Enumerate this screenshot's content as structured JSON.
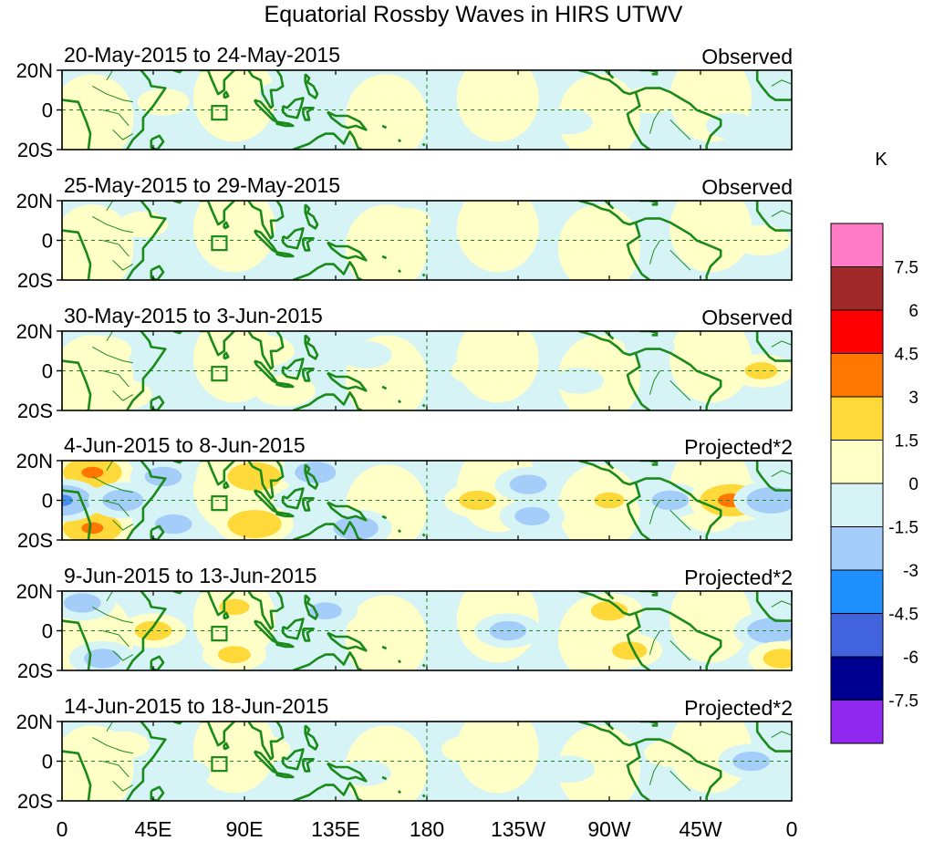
{
  "title": "Equatorial Rossby Waves in HIRS UTWV",
  "unit": "K",
  "lat_labels": [
    "20N",
    "0",
    "20S"
  ],
  "lon_labels": [
    "0",
    "45E",
    "90E",
    "135E",
    "180",
    "135W",
    "90W",
    "45W",
    "0"
  ],
  "panels": [
    {
      "date_range": "20-May-2015 to 24-May-2015",
      "kind": "Observed"
    },
    {
      "date_range": "25-May-2015 to 29-May-2015",
      "kind": "Observed"
    },
    {
      "date_range": "30-May-2015 to 3-Jun-2015",
      "kind": "Observed"
    },
    {
      "date_range": "4-Jun-2015 to 8-Jun-2015",
      "kind": "Projected*2"
    },
    {
      "date_range": "9-Jun-2015 to 13-Jun-2015",
      "kind": "Projected*2"
    },
    {
      "date_range": "14-Jun-2015 to 18-Jun-2015",
      "kind": "Projected*2"
    }
  ],
  "colorbar": {
    "labels": [
      "7.5",
      "6",
      "4.5",
      "3",
      "1.5",
      "0",
      "-1.5",
      "-3",
      "-4.5",
      "-6",
      "-7.5"
    ],
    "colors": [
      "#ff7bc6",
      "#a02828",
      "#ff0000",
      "#ff7700",
      "#ffd93a",
      "#ffffc8",
      "#d6f4f6",
      "#a5cdfa",
      "#2090ff",
      "#4164de",
      "#000090",
      "#9128f0"
    ]
  },
  "map_colors": {
    "coast": "#1a8a1a",
    "pos1": "#ffffc8",
    "pos2": "#ffd93a",
    "pos3": "#ff7700",
    "neg1": "#d6f4f6",
    "neg2": "#a5cdfa",
    "neg3": "#4a8ef0"
  },
  "panel_anomalies": [
    [
      {
        "lon": 50,
        "lat": 4,
        "amp": 0.8
      },
      {
        "lon": 110,
        "lat": 8,
        "amp": -0.8
      },
      {
        "lon": 160,
        "lat": -5,
        "amp": 0.7
      },
      {
        "lon": 220,
        "lat": 3,
        "amp": 0.9
      },
      {
        "lon": 250,
        "lat": -6,
        "amp": -0.6
      },
      {
        "lon": 290,
        "lat": 5,
        "amp": 0.8
      },
      {
        "lon": 330,
        "lat": -8,
        "amp": -0.7
      }
    ],
    [
      {
        "lon": 40,
        "lat": 8,
        "amp": 0.7
      },
      {
        "lon": 115,
        "lat": 0,
        "amp": -0.9
      },
      {
        "lon": 170,
        "lat": 10,
        "amp": 0.6
      },
      {
        "lon": 215,
        "lat": -5,
        "amp": 0.9
      },
      {
        "lon": 265,
        "lat": 6,
        "amp": 0.7
      },
      {
        "lon": 345,
        "lat": 0,
        "amp": 1.2
      }
    ],
    [
      {
        "lon": 20,
        "lat": 10,
        "amp": 1.2
      },
      {
        "lon": 30,
        "lat": -12,
        "amp": 1.2
      },
      {
        "lon": 100,
        "lat": 10,
        "amp": 1.3
      },
      {
        "lon": 110,
        "lat": -10,
        "amp": 1.4
      },
      {
        "lon": 150,
        "lat": 8,
        "amp": -0.8
      },
      {
        "lon": 205,
        "lat": 0,
        "amp": 0.9
      },
      {
        "lon": 255,
        "lat": -5,
        "amp": -0.7
      },
      {
        "lon": 290,
        "lat": 12,
        "amp": -0.7
      },
      {
        "lon": 345,
        "lat": 0,
        "amp": 1.6
      }
    ],
    [
      {
        "lon": 15,
        "lat": 14,
        "amp": 3.0
      },
      {
        "lon": 15,
        "lat": -14,
        "amp": 3.0
      },
      {
        "lon": 0,
        "lat": 0,
        "amp": -3.0
      },
      {
        "lon": 30,
        "lat": 0,
        "amp": -2.0
      },
      {
        "lon": 50,
        "lat": 12,
        "amp": -1.8
      },
      {
        "lon": 55,
        "lat": -12,
        "amp": -1.8
      },
      {
        "lon": 95,
        "lat": 12,
        "amp": 2.7
      },
      {
        "lon": 95,
        "lat": -12,
        "amp": 2.7
      },
      {
        "lon": 125,
        "lat": 14,
        "amp": -2.0
      },
      {
        "lon": 145,
        "lat": -14,
        "amp": -2.2
      },
      {
        "lon": 205,
        "lat": 0,
        "amp": 1.8
      },
      {
        "lon": 230,
        "lat": 8,
        "amp": -1.8
      },
      {
        "lon": 232,
        "lat": -8,
        "amp": -1.7
      },
      {
        "lon": 270,
        "lat": 0,
        "amp": 1.5
      },
      {
        "lon": 300,
        "lat": 0,
        "amp": -1.8
      },
      {
        "lon": 330,
        "lat": 0,
        "amp": 3.2
      },
      {
        "lon": 350,
        "lat": 0,
        "amp": -2.5
      }
    ],
    [
      {
        "lon": 10,
        "lat": 14,
        "amp": -1.8
      },
      {
        "lon": 20,
        "lat": -14,
        "amp": -1.8
      },
      {
        "lon": 45,
        "lat": 0,
        "amp": 1.8
      },
      {
        "lon": 85,
        "lat": 12,
        "amp": 1.5
      },
      {
        "lon": 85,
        "lat": -12,
        "amp": 1.6
      },
      {
        "lon": 130,
        "lat": 10,
        "amp": -1.6
      },
      {
        "lon": 160,
        "lat": -5,
        "amp": 1.4
      },
      {
        "lon": 220,
        "lat": 0,
        "amp": -1.8
      },
      {
        "lon": 270,
        "lat": 10,
        "amp": 1.8
      },
      {
        "lon": 280,
        "lat": -10,
        "amp": 1.7
      },
      {
        "lon": 350,
        "lat": 0,
        "amp": -2.4
      },
      {
        "lon": 355,
        "lat": -14,
        "amp": 1.8
      }
    ],
    [
      {
        "lon": 30,
        "lat": 8,
        "amp": 0.9
      },
      {
        "lon": 60,
        "lat": -6,
        "amp": -0.9
      },
      {
        "lon": 100,
        "lat": 6,
        "amp": 0.8
      },
      {
        "lon": 150,
        "lat": -6,
        "amp": -0.7
      },
      {
        "lon": 200,
        "lat": 6,
        "amp": 0.8
      },
      {
        "lon": 250,
        "lat": -4,
        "amp": -0.8
      },
      {
        "lon": 300,
        "lat": 4,
        "amp": 0.8
      },
      {
        "lon": 340,
        "lat": 0,
        "amp": -1.8
      }
    ]
  ]
}
